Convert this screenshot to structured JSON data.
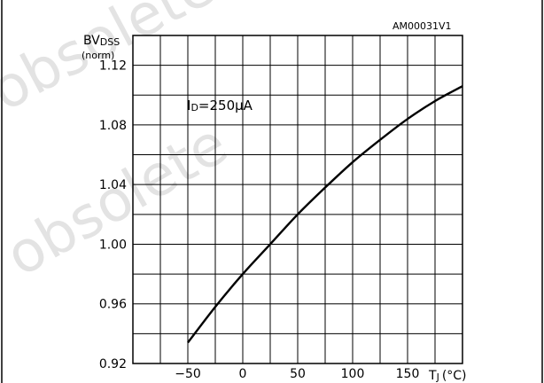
{
  "chart_data": {
    "type": "line",
    "code": "AM00031V1",
    "ylabel_main": "BV",
    "ylabel_sub": "DSS",
    "ylabel_norm": "(norm)",
    "xlabel_main": "T",
    "xlabel_sub": "J",
    "xlabel_unit": "(°C)",
    "annotation_main": "I",
    "annotation_sub": "D",
    "annotation_rest": "=250μA",
    "watermark": "obsolete",
    "xlim": [
      -100,
      200
    ],
    "ylim": [
      0.92,
      1.14
    ],
    "xticks": [
      -50,
      0,
      50,
      100,
      150
    ],
    "xtick_labels": [
      "−50",
      "0",
      "50",
      "100",
      "150"
    ],
    "yticks": [
      0.92,
      0.96,
      1.0,
      1.04,
      1.08,
      1.12
    ],
    "ytick_labels": [
      "0.92",
      "0.96",
      "1.00",
      "1.04",
      "1.08",
      "1.12"
    ],
    "grid": true,
    "series": [
      {
        "x": [
          -50,
          -25,
          0,
          25,
          50,
          75,
          100,
          125,
          150,
          175,
          200
        ],
        "y": [
          0.934,
          0.958,
          0.98,
          1.0,
          1.02,
          1.038,
          1.055,
          1.07,
          1.084,
          1.096,
          1.106
        ]
      }
    ]
  }
}
